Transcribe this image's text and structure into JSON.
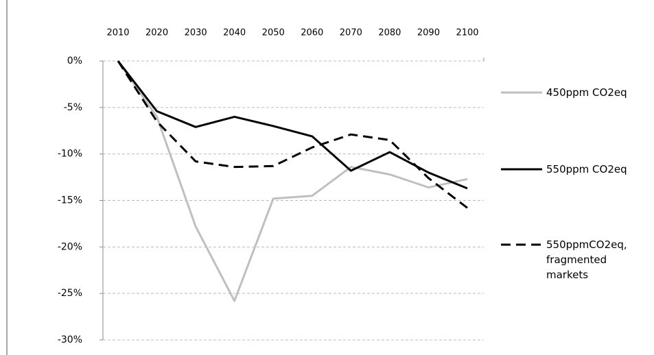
{
  "chart_data": {
    "type": "line",
    "categories": [
      "2010",
      "2020",
      "2030",
      "2040",
      "2050",
      "2060",
      "2070",
      "2080",
      "2090",
      "2100"
    ],
    "series": [
      {
        "name": "450ppm CO2eq",
        "color": "#bfbfbf",
        "dash": false,
        "values": [
          0,
          -6,
          -17.8,
          -25.8,
          -14.8,
          -14.5,
          -11.4,
          -12.2,
          -13.6,
          -12.7
        ]
      },
      {
        "name": "550ppm CO2eq",
        "color": "#000000",
        "dash": false,
        "values": [
          0,
          -5.4,
          -7.1,
          -6.0,
          -7.0,
          -8.1,
          -11.8,
          -9.8,
          -12.0,
          -13.7
        ]
      },
      {
        "name": "550ppmCO2eq, fragmented markets",
        "color": "#000000",
        "dash": true,
        "values": [
          0,
          -6.5,
          -10.8,
          -11.4,
          -11.3,
          -9.3,
          -7.9,
          -8.5,
          -12.6,
          -15.8
        ]
      }
    ],
    "ylim": [
      -30,
      0
    ],
    "yticks": [
      {
        "value": 0,
        "label": "0%"
      },
      {
        "value": -5,
        "label": "-5%"
      },
      {
        "value": -10,
        "label": "-10%"
      },
      {
        "value": -15,
        "label": "-15%"
      },
      {
        "value": -20,
        "label": "-20%"
      },
      {
        "value": -25,
        "label": "-25%"
      },
      {
        "value": -30,
        "label": "-30%"
      }
    ],
    "grid": true
  }
}
